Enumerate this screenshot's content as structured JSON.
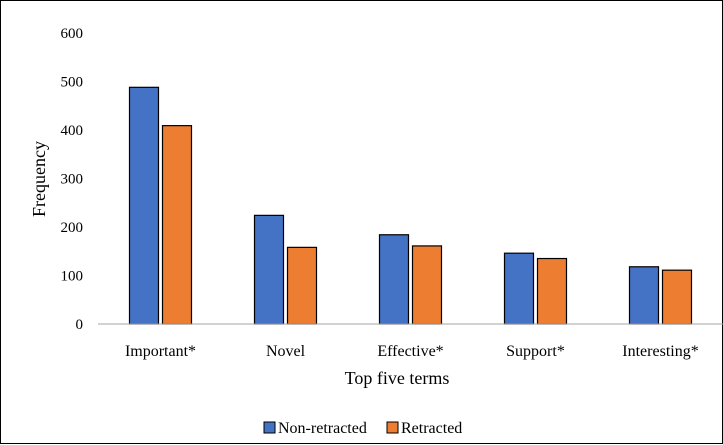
{
  "chart_data": {
    "type": "bar",
    "title": "",
    "xlabel": "Top  five terms",
    "ylabel": "Frequency",
    "ylim": [
      0,
      600
    ],
    "yticks": [
      0,
      100,
      200,
      300,
      400,
      500,
      600
    ],
    "categories": [
      "Important*",
      "Novel",
      "Effective*",
      "Support*",
      "Interesting*"
    ],
    "series": [
      {
        "name": "Non-retracted",
        "color": "#4472C4",
        "values": [
          488,
          224,
          184,
          146,
          118
        ]
      },
      {
        "name": "Retracted",
        "color": "#ED7D31",
        "values": [
          409,
          158,
          161,
          135,
          111
        ]
      }
    ],
    "grid": false,
    "legend": "bottom"
  }
}
